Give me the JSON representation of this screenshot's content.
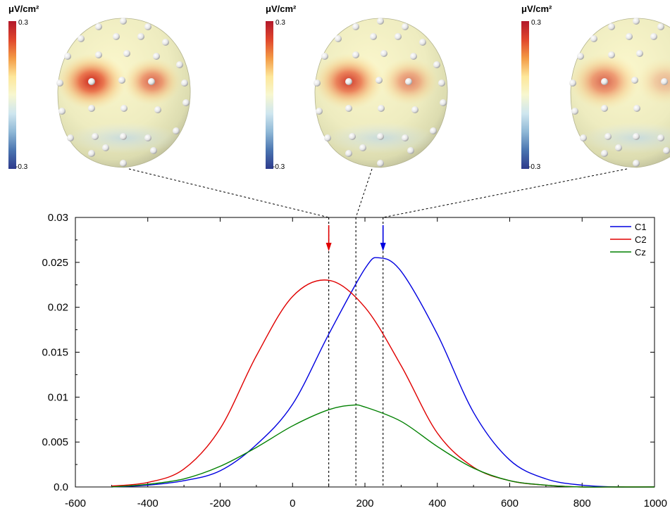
{
  "colorbar": {
    "unit": "μV/cm²",
    "max_label": "0.3",
    "min_label": "-0.3",
    "colors": [
      "#b2182b",
      "#e0462c",
      "#f39a45",
      "#fde79a",
      "#f7f7d0",
      "#cfe6ef",
      "#8fb8d6",
      "#4a74b0",
      "#2d3a8c"
    ]
  },
  "head_maps": [
    {
      "time_ms": 100,
      "hotspots": [
        {
          "site": "left",
          "strength": 1.0
        },
        {
          "site": "right",
          "strength": 0.7
        }
      ]
    },
    {
      "time_ms": 175,
      "hotspots": [
        {
          "site": "left",
          "strength": 0.9
        },
        {
          "site": "right",
          "strength": 0.55
        }
      ]
    },
    {
      "time_ms": 250,
      "hotspots": [
        {
          "site": "left",
          "strength": 0.7
        },
        {
          "site": "right",
          "strength": 0.3
        }
      ]
    }
  ],
  "markers": {
    "lines_ms": [
      100,
      175,
      250
    ],
    "arrows": [
      {
        "x": 100,
        "color": "#e00000"
      },
      {
        "x": 250,
        "color": "#0000e0"
      }
    ]
  },
  "chart_data": {
    "type": "line",
    "xlim": [
      -600,
      1000
    ],
    "ylim": [
      0,
      0.03
    ],
    "xticks": [
      -600,
      -400,
      -200,
      0,
      200,
      400,
      600,
      800,
      1000
    ],
    "yticks": [
      0.0,
      0.005,
      0.01,
      0.015,
      0.02,
      0.025,
      0.03
    ],
    "ytick_labels": [
      "0.0",
      "0.005",
      "0.01",
      "0.015",
      "0.02",
      "0.025",
      "0.03"
    ],
    "grid": false,
    "legend_position": "top-right",
    "series": [
      {
        "name": "C1",
        "color": "#0000e0",
        "x": [
          -500,
          -400,
          -300,
          -200,
          -100,
          0,
          100,
          200,
          240,
          300,
          400,
          500,
          600,
          700,
          800,
          900,
          1000
        ],
        "y": [
          0.0,
          0.0002,
          0.0007,
          0.0018,
          0.0047,
          0.0092,
          0.017,
          0.0243,
          0.0255,
          0.024,
          0.017,
          0.0083,
          0.003,
          0.0009,
          0.0002,
          0.0,
          0.0
        ]
      },
      {
        "name": "C2",
        "color": "#e00000",
        "x": [
          -500,
          -400,
          -300,
          -200,
          -100,
          0,
          100,
          200,
          300,
          400,
          500,
          600,
          700,
          800,
          900,
          1000
        ],
        "y": [
          0.0001,
          0.0005,
          0.002,
          0.0065,
          0.0146,
          0.0212,
          0.023,
          0.02,
          0.0135,
          0.006,
          0.0022,
          0.0007,
          0.0002,
          0.0,
          0.0,
          0.0
        ]
      },
      {
        "name": "Cz",
        "color": "#008000",
        "x": [
          -500,
          -400,
          -300,
          -200,
          -100,
          0,
          100,
          165,
          200,
          300,
          400,
          500,
          600,
          700,
          800,
          900,
          1000
        ],
        "y": [
          0.0,
          0.0003,
          0.0009,
          0.0023,
          0.0044,
          0.0068,
          0.0086,
          0.0091,
          0.0089,
          0.0073,
          0.0045,
          0.0021,
          0.0007,
          0.0002,
          0.0,
          0.0,
          0.0
        ]
      }
    ]
  }
}
